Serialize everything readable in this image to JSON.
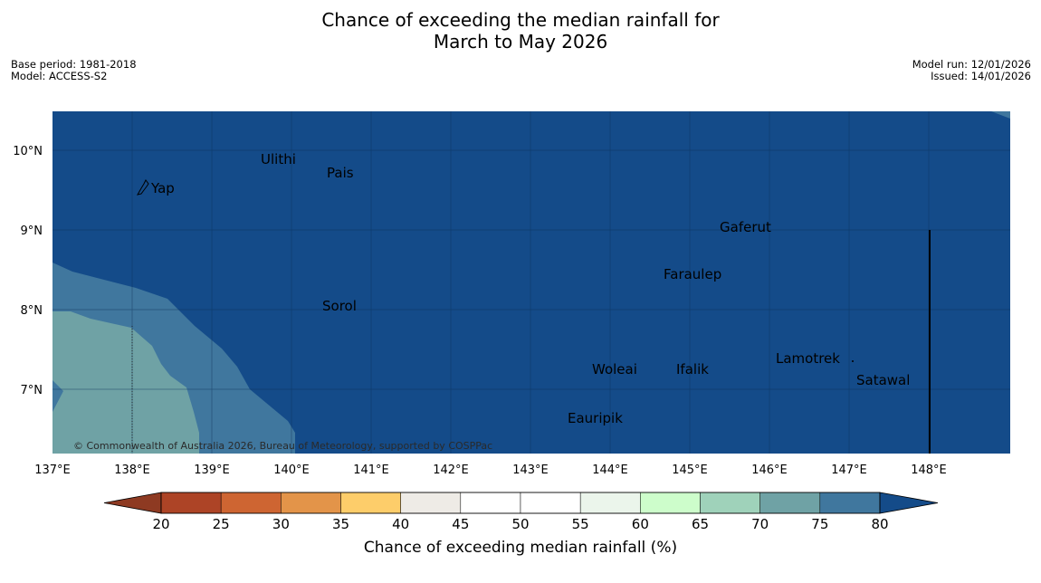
{
  "title": {
    "line1": "Chance of exceeding the median rainfall for",
    "line2": "March to May 2026"
  },
  "info_left": {
    "base_period": "Base period: 1981-2018",
    "model": "Model: ACCESS-S2"
  },
  "info_right": {
    "model_run": "Model run: 12/01/2026",
    "issued": "Issued: 14/01/2026"
  },
  "map": {
    "lat_labels": [
      "10°N",
      "9°N",
      "8°N",
      "7°N"
    ],
    "lon_labels": [
      "137°E",
      "138°E",
      "139°E",
      "140°E",
      "141°E",
      "142°E",
      "143°E",
      "144°E",
      "145°E",
      "146°E",
      "147°E",
      "148°E"
    ],
    "places": [
      "Ulithi",
      "Pais",
      "Yap",
      "Gaferut",
      "Faraulep",
      "Sorol",
      "Woleai",
      "Ifalik",
      "Lamotrek",
      "Satawal",
      "Eauripik"
    ],
    "copyright": "© Commonwealth of Australia 2026, Bureau of Meteorology, supported by COSPPac"
  },
  "legend": {
    "ticks": [
      "20",
      "25",
      "30",
      "35",
      "40",
      "45",
      "50",
      "55",
      "60",
      "65",
      "70",
      "75",
      "80"
    ],
    "colors": [
      "#ad4426",
      "#ce6532",
      "#e39449",
      "#fdcd6a",
      "#eeebe6",
      "#ffffff",
      "#ffffff",
      "#ebf5eb",
      "#cdfdcb",
      "#9fd2ba",
      "#6fa2a5",
      "#40779e",
      "#144b89"
    ],
    "low_color": "#8e3a22",
    "title": "Chance of exceeding median rainfall (%)"
  }
}
